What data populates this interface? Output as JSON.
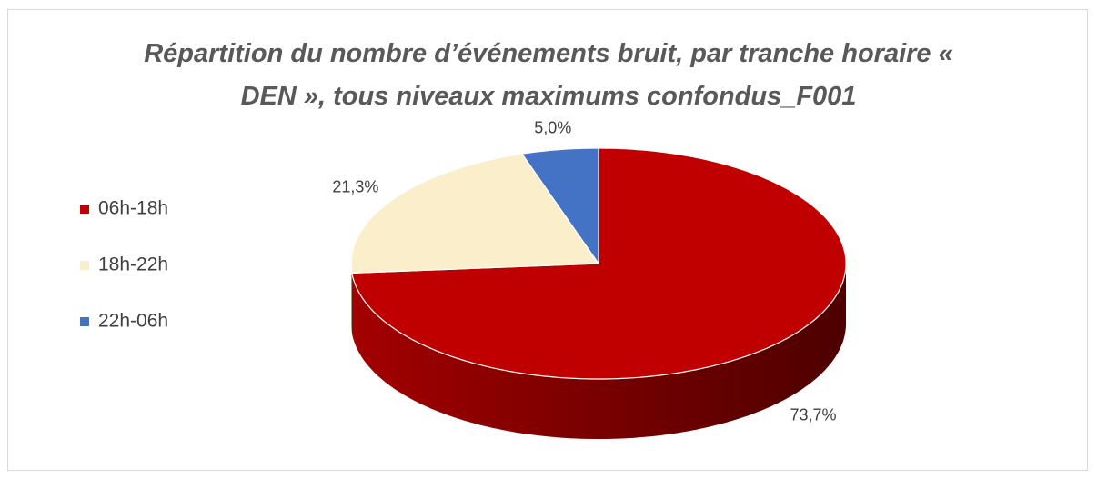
{
  "chart_data": {
    "type": "pie3d",
    "title": "Répartition du nombre d’événements bruit, par tranche horaire « DEN », tous niveaux maximums confondus_F001",
    "categories": [
      "06h-18h",
      "18h-22h",
      "22h-06h"
    ],
    "values": [
      73.7,
      21.3,
      5.0
    ],
    "value_labels": [
      "73,7%",
      "21,3%",
      "5,0%"
    ],
    "colors": [
      "#c00000",
      "#fbeecb",
      "#4472c4"
    ],
    "legend": "left"
  }
}
